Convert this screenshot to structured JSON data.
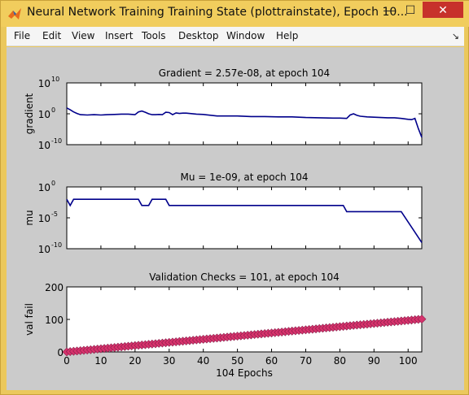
{
  "window": {
    "title": "Neural Network Training Training State (plottrainstate), Epoch 10...",
    "buttons": {
      "minimize": "—",
      "maximize": "☐",
      "close": "✕"
    }
  },
  "menu": {
    "items": [
      "File",
      "Edit",
      "View",
      "Insert",
      "Tools",
      "Desktop",
      "Window",
      "Help"
    ],
    "dock_arrow": "↘"
  },
  "chart_data": [
    {
      "type": "line",
      "title": "Gradient = 2.57e-08, at epoch 104",
      "ylabel": "gradient",
      "yscale": "log",
      "yticks": [
        "10",
        "10",
        "10"
      ],
      "ytick_exponents": [
        "10",
        "0",
        "-10"
      ],
      "xlim": [
        0,
        104
      ],
      "ylim_log10": [
        -10,
        10
      ],
      "color": "#00008b",
      "x": [
        0,
        1,
        2,
        3,
        4,
        6,
        8,
        10,
        12,
        14,
        16,
        18,
        20,
        21,
        22,
        23,
        24,
        25,
        26,
        27,
        28,
        29,
        30,
        31,
        32,
        33,
        34,
        35,
        38,
        40,
        44,
        48,
        50,
        54,
        58,
        62,
        66,
        70,
        74,
        78,
        80,
        82,
        83,
        84,
        85,
        86,
        88,
        90,
        94,
        96,
        98,
        100,
        101,
        102,
        103,
        104
      ],
      "log10": [
        1.9,
        1.3,
        0.6,
        0.1,
        -0.3,
        -0.4,
        -0.3,
        -0.4,
        -0.3,
        -0.2,
        -0.1,
        -0.1,
        -0.3,
        0.6,
        0.9,
        0.5,
        0.0,
        -0.3,
        -0.3,
        -0.2,
        -0.3,
        0.5,
        0.4,
        -0.3,
        0.3,
        0.1,
        0.2,
        0.2,
        -0.1,
        -0.2,
        -0.7,
        -0.7,
        -0.7,
        -0.9,
        -0.9,
        -1.0,
        -1.0,
        -1.2,
        -1.3,
        -1.4,
        -1.4,
        -1.5,
        -0.4,
        0.0,
        -0.5,
        -0.8,
        -1.0,
        -1.1,
        -1.3,
        -1.3,
        -1.5,
        -1.8,
        -1.9,
        -1.5,
        -4.8,
        -7.6
      ]
    },
    {
      "type": "line",
      "title": "Mu = 1e-09, at epoch 104",
      "ylabel": "mu",
      "yscale": "log",
      "yticks": [
        "10",
        "10",
        "10"
      ],
      "ytick_exponents": [
        "0",
        "-5",
        "-10"
      ],
      "xlim": [
        0,
        104
      ],
      "ylim_log10": [
        -10,
        0
      ],
      "color": "#00008b",
      "x": [
        0,
        1,
        2,
        20,
        21,
        22,
        24,
        25,
        28,
        29,
        30,
        31,
        80,
        81,
        82,
        98,
        104
      ],
      "log10": [
        -2,
        -3,
        -2,
        -2,
        -2,
        -3,
        -3,
        -2,
        -2,
        -2,
        -3,
        -3,
        -3,
        -3,
        -4,
        -4,
        -9
      ]
    },
    {
      "type": "line",
      "title": "Validation Checks = 101, at epoch 104",
      "xlabel": "104 Epochs",
      "ylabel": "val fail",
      "xlim": [
        0,
        104
      ],
      "ylim": [
        0,
        200
      ],
      "xticks": [
        "0",
        "10",
        "20",
        "30",
        "40",
        "50",
        "60",
        "70",
        "80",
        "90",
        "100"
      ],
      "yticks": [
        "200",
        "100",
        "0"
      ],
      "color": "#00008b",
      "marker_color": "#d6336c",
      "marker": "diamond",
      "x_start": 0,
      "x_end": 104,
      "y_start": 0,
      "y_end": 101
    }
  ]
}
